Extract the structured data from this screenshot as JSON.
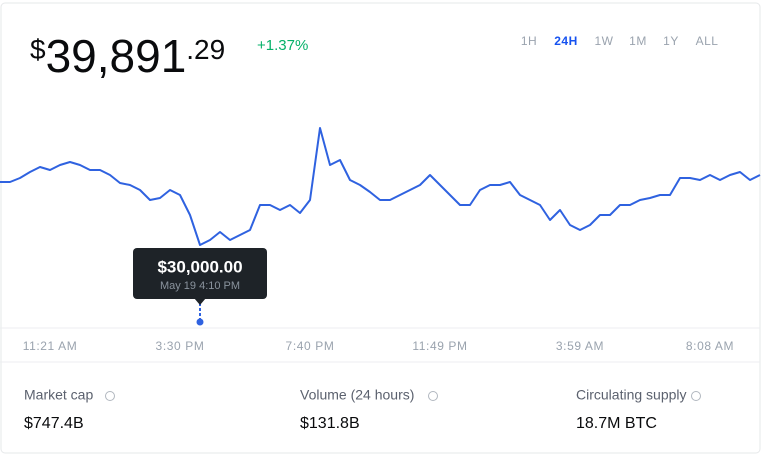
{
  "header": {
    "currency": "$",
    "price_whole": "39,891",
    "price_cents": ".29",
    "change": "+1.37%"
  },
  "tabs": [
    "1H",
    "24H",
    "1W",
    "1M",
    "1Y",
    "ALL"
  ],
  "active_tab": "24H",
  "chart_data": {
    "type": "line",
    "color": "#2f62e0",
    "categories": [
      null,
      null,
      null,
      null,
      null,
      "11:21 AM",
      null,
      null,
      null,
      null,
      null,
      null,
      null,
      null,
      null,
      null,
      null,
      null,
      "3:30 PM",
      null,
      null,
      null,
      null,
      null,
      null,
      null,
      null,
      null,
      null,
      null,
      null,
      "7:40 PM",
      null,
      null,
      null,
      null,
      null,
      null,
      null,
      null,
      null,
      null,
      null,
      null,
      "11:49 PM",
      null,
      null,
      null,
      null,
      null,
      null,
      null,
      null,
      null,
      null,
      null,
      null,
      null,
      "3:59 AM",
      null,
      null,
      null,
      null,
      null,
      null,
      null,
      null,
      null,
      null,
      null,
      null,
      "8:08 AM",
      null,
      null,
      null,
      null,
      null
    ],
    "values": [
      38880,
      38880,
      39450,
      40290,
      41000,
      40580,
      41280,
      41700,
      41280,
      40580,
      40580,
      39870,
      38740,
      38460,
      37760,
      36350,
      36630,
      37760,
      37050,
      34230,
      30000,
      30710,
      31830,
      30710,
      31410,
      32120,
      35640,
      35640,
      34940,
      35640,
      34510,
      36350,
      46500,
      41280,
      41990,
      39170,
      38460,
      37470,
      36350,
      36350,
      37050,
      37760,
      38460,
      39870,
      38460,
      37050,
      35640,
      35640,
      37760,
      38460,
      38460,
      38880,
      37050,
      36350,
      35640,
      33530,
      34940,
      32820,
      32120,
      32820,
      34230,
      34230,
      35640,
      35640,
      36350,
      36630,
      37050,
      37050,
      39450,
      39450,
      39170,
      39870,
      39170,
      39870,
      40290,
      39170,
      39870
    ],
    "value_labels": [
      null,
      null,
      null,
      null,
      null,
      null,
      null,
      null,
      null,
      null,
      null,
      null,
      null,
      null,
      null,
      null,
      null,
      null,
      null,
      null,
      "$30,000.00",
      null,
      null,
      null,
      null,
      null,
      null,
      null,
      null,
      null,
      null,
      null,
      null,
      null,
      null,
      null,
      null,
      null,
      null,
      null,
      null,
      null,
      null,
      null,
      null,
      null,
      null,
      null,
      null,
      null,
      null,
      null,
      null,
      null,
      null,
      null,
      null,
      null,
      null,
      null,
      null,
      null,
      null,
      null,
      null,
      null,
      null,
      null,
      null,
      null,
      null,
      null,
      null,
      null,
      null,
      null,
      null
    ],
    "tooltip_time": "May 19 4:10 PM"
  },
  "stats": [
    {
      "label": "Market cap",
      "value": "$747.4B"
    },
    {
      "label": "Volume (24 hours)",
      "value": "$131.8B"
    },
    {
      "label": "Circulating supply",
      "value": "18.7M BTC"
    }
  ]
}
